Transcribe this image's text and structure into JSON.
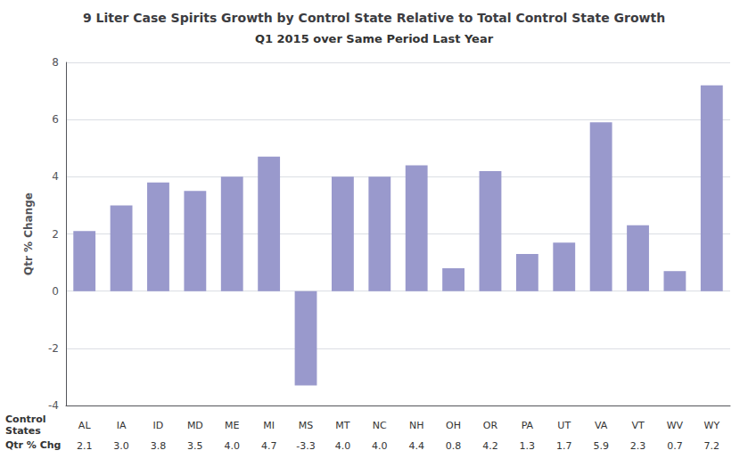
{
  "chart_data": {
    "type": "bar",
    "title": "9 Liter Case Spirits Growth by Control State Relative to Total Control State Growth",
    "subtitle": "Q1 2015 over Same Period Last Year",
    "categories": [
      "AL",
      "IA",
      "ID",
      "MD",
      "ME",
      "MI",
      "MS",
      "MT",
      "NC",
      "NH",
      "OH",
      "OR",
      "PA",
      "UT",
      "VA",
      "VT",
      "WV",
      "WY"
    ],
    "values": [
      2.1,
      3.0,
      3.8,
      3.5,
      4.0,
      4.7,
      -3.3,
      4.0,
      4.0,
      4.4,
      0.8,
      4.2,
      1.3,
      1.7,
      5.9,
      2.3,
      0.7,
      7.2
    ],
    "value_labels": [
      "2.1",
      "3.0",
      "3.8",
      "3.5",
      "4.0",
      "4.7",
      "-3.3",
      "4.0",
      "4.0",
      "4.4",
      "0.8",
      "4.2",
      "1.3",
      "1.7",
      "5.9",
      "2.3",
      "0.7",
      "7.2"
    ],
    "annotations": [
      "Control\nStates",
      "Qtr % Chg"
    ],
    "ylabel": "Qtr % Change",
    "color": "#9999CC",
    "ylim": [
      -4.0,
      8.0
    ],
    "yticks": [
      -4.0,
      -2.0,
      0.0,
      2.0,
      4.0,
      6.0,
      8.0
    ],
    "grid": true
  }
}
